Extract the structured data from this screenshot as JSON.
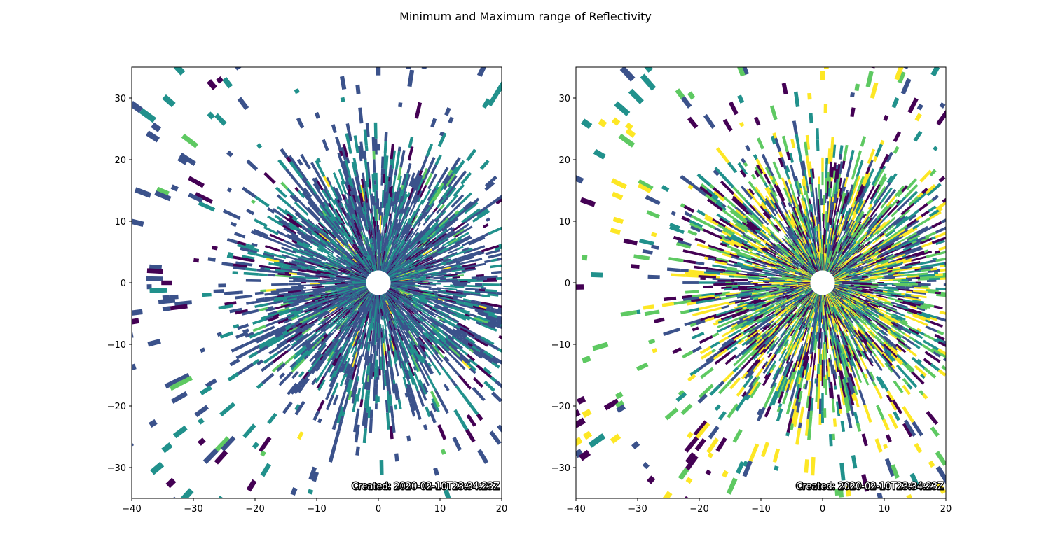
{
  "figure": {
    "title": "Minimum and Maximum range of Reflectivity"
  },
  "chart_data": [
    {
      "type": "heatmap",
      "subtype": "radar-ppi",
      "title": "",
      "xlabel": "",
      "ylabel": "",
      "xlim": [
        -40,
        20
      ],
      "ylim": [
        -35,
        35
      ],
      "xticks": [
        -40,
        -30,
        -20,
        -10,
        0,
        10,
        20
      ],
      "yticks": [
        -30,
        -20,
        -10,
        0,
        10,
        20,
        30
      ],
      "xtick_labels": [
        "−40",
        "−30",
        "−20",
        "−10",
        "0",
        "10",
        "20"
      ],
      "ytick_labels": [
        "−30",
        "−20",
        "−10",
        "0",
        "10",
        "20",
        "30"
      ],
      "colormap": "viridis",
      "color_bias": "low",
      "center": [
        0,
        0
      ],
      "blind_radius": 2,
      "dense_radius": 22,
      "annotation": "Created: 2020-02-10T23:34:23Z",
      "grid": false,
      "legend": "none"
    },
    {
      "type": "heatmap",
      "subtype": "radar-ppi",
      "title": "",
      "xlabel": "",
      "ylabel": "",
      "xlim": [
        -40,
        20
      ],
      "ylim": [
        -35,
        35
      ],
      "xticks": [
        -40,
        -30,
        -20,
        -10,
        0,
        10,
        20
      ],
      "yticks": [
        -30,
        -20,
        -10,
        0,
        10,
        20,
        30
      ],
      "xtick_labels": [
        "−40",
        "−30",
        "−20",
        "−10",
        "0",
        "10",
        "20"
      ],
      "ytick_labels": [
        "−30",
        "−20",
        "−10",
        "0",
        "10",
        "20",
        "30"
      ],
      "colormap": "viridis",
      "color_bias": "high",
      "center": [
        0,
        0
      ],
      "blind_radius": 2,
      "dense_radius": 22,
      "annotation": "Created: 2020-02-10T23:34:23Z",
      "grid": false,
      "legend": "none"
    }
  ],
  "colors": {
    "viridis": [
      "#440154",
      "#3b528b",
      "#21918c",
      "#5ec962",
      "#fde725"
    ]
  }
}
